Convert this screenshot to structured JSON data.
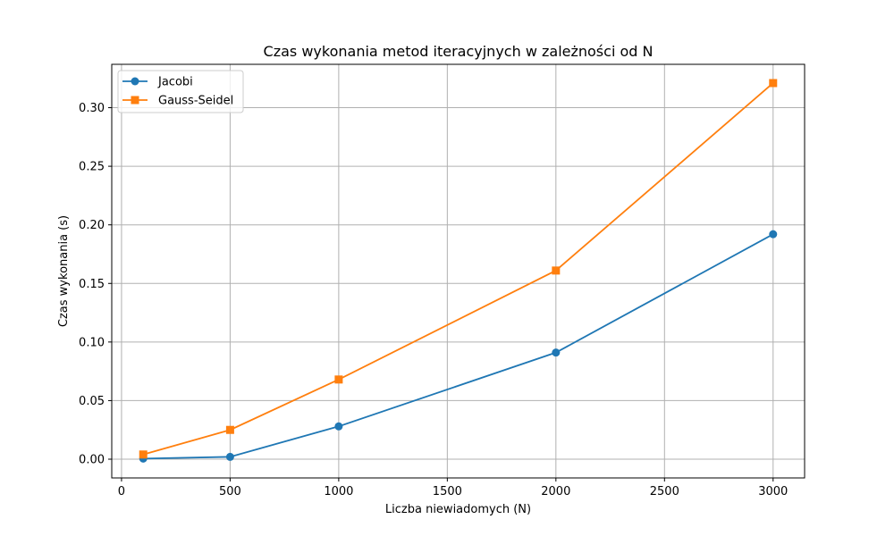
{
  "chart_data": {
    "type": "line",
    "title": "Czas wykonania metod iteracyjnych w zależności od N",
    "xlabel": "Liczba niewiadomych (N)",
    "ylabel": "Czas wykonania (s)",
    "xlim": [
      -45,
      3145
    ],
    "ylim": [
      -0.016,
      0.337
    ],
    "xticks": [
      0,
      500,
      1000,
      1500,
      2000,
      2500,
      3000
    ],
    "xtick_labels": [
      "0",
      "500",
      "1000",
      "1500",
      "2000",
      "2500",
      "3000"
    ],
    "yticks": [
      0.0,
      0.05,
      0.1,
      0.15,
      0.2,
      0.25,
      0.3
    ],
    "ytick_labels": [
      "0.00",
      "0.05",
      "0.10",
      "0.15",
      "0.20",
      "0.25",
      "0.30"
    ],
    "grid": true,
    "legend_position": "top-left",
    "x": [
      100,
      500,
      1000,
      2000,
      3000
    ],
    "series": [
      {
        "name": "Jacobi",
        "color": "#1f77b4",
        "marker": "circle",
        "values": [
          0.0005,
          0.002,
          0.028,
          0.091,
          0.192
        ]
      },
      {
        "name": "Gauss-Seidel",
        "color": "#ff7f0e",
        "marker": "square",
        "values": [
          0.004,
          0.025,
          0.068,
          0.161,
          0.321
        ]
      }
    ]
  }
}
